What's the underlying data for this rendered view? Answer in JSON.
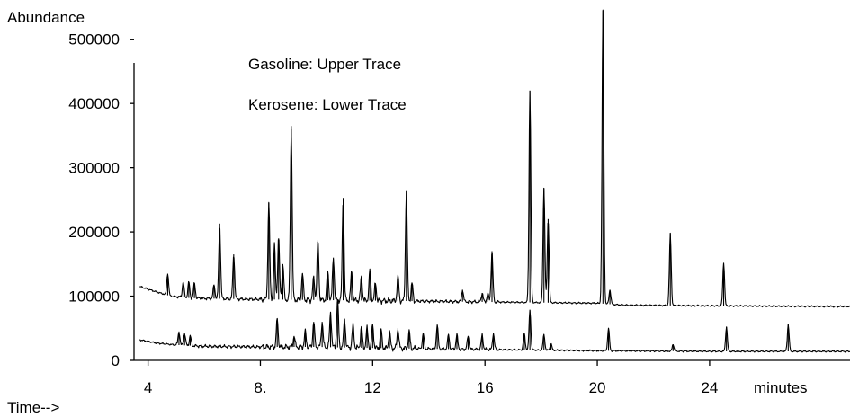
{
  "chart_data": {
    "type": "line",
    "ylabel": "Abundance",
    "xlabel_prefix": "Time-->",
    "x_unit_label": "minutes",
    "annotations": [
      "Gasoline:  Upper Trace",
      "Kerosene:  Lower Trace"
    ],
    "xlim": [
      3.5,
      29.0
    ],
    "ylim": [
      0,
      550000
    ],
    "x_ticks": [
      4,
      8,
      12,
      16,
      20,
      24
    ],
    "x_tick_labels": [
      "4",
      "8.",
      "12",
      "16",
      "20",
      "24"
    ],
    "y_ticks": [
      0,
      100000,
      200000,
      300000,
      400000,
      500000
    ],
    "y_tick_labels": [
      "0",
      "100000",
      "200000",
      "300000",
      "400000",
      "500000"
    ],
    "grid": false,
    "series": [
      {
        "name": "Gasoline",
        "baseline": [
          [
            3.7,
            115000
          ],
          [
            4.2,
            108000
          ],
          [
            4.8,
            100000
          ],
          [
            5.5,
            97000
          ],
          [
            6.5,
            96000
          ],
          [
            8,
            95000
          ],
          [
            10,
            94000
          ],
          [
            12,
            93000
          ],
          [
            16,
            91000
          ],
          [
            20,
            89000
          ],
          [
            20.6,
            87000
          ],
          [
            21,
            86000
          ],
          [
            24,
            85000
          ],
          [
            28,
            84000
          ],
          [
            29.0,
            84000
          ]
        ],
        "peaks": [
          {
            "x": 4.7,
            "y": 135000
          },
          {
            "x": 5.25,
            "y": 122000
          },
          {
            "x": 5.45,
            "y": 122000
          },
          {
            "x": 5.65,
            "y": 120000
          },
          {
            "x": 6.35,
            "y": 118000
          },
          {
            "x": 6.55,
            "y": 213000
          },
          {
            "x": 7.05,
            "y": 165000
          },
          {
            "x": 8.3,
            "y": 245000
          },
          {
            "x": 8.5,
            "y": 180000
          },
          {
            "x": 8.65,
            "y": 190000
          },
          {
            "x": 8.8,
            "y": 150000
          },
          {
            "x": 9.1,
            "y": 365000
          },
          {
            "x": 9.5,
            "y": 135000
          },
          {
            "x": 9.9,
            "y": 130000
          },
          {
            "x": 10.05,
            "y": 187000
          },
          {
            "x": 10.4,
            "y": 140000
          },
          {
            "x": 10.6,
            "y": 160000
          },
          {
            "x": 10.95,
            "y": 253000
          },
          {
            "x": 11.25,
            "y": 138000
          },
          {
            "x": 11.6,
            "y": 130000
          },
          {
            "x": 11.9,
            "y": 140000
          },
          {
            "x": 12.1,
            "y": 120000
          },
          {
            "x": 12.9,
            "y": 130000
          },
          {
            "x": 13.2,
            "y": 265000
          },
          {
            "x": 13.4,
            "y": 120000
          },
          {
            "x": 15.2,
            "y": 110000
          },
          {
            "x": 15.9,
            "y": 105000
          },
          {
            "x": 16.1,
            "y": 104000
          },
          {
            "x": 16.25,
            "y": 170000
          },
          {
            "x": 17.6,
            "y": 420000
          },
          {
            "x": 18.1,
            "y": 268000
          },
          {
            "x": 18.25,
            "y": 220000
          },
          {
            "x": 20.2,
            "y": 545000
          },
          {
            "x": 20.45,
            "y": 110000
          },
          {
            "x": 22.6,
            "y": 198000
          },
          {
            "x": 24.5,
            "y": 152000
          }
        ]
      },
      {
        "name": "Kerosene",
        "baseline": [
          [
            3.7,
            32000
          ],
          [
            4.3,
            27000
          ],
          [
            5.0,
            24000
          ],
          [
            6,
            22000
          ],
          [
            8,
            21000
          ],
          [
            10,
            21000
          ],
          [
            11,
            20000
          ],
          [
            14,
            18000
          ],
          [
            16,
            17000
          ],
          [
            18,
            16000
          ],
          [
            20,
            15000
          ],
          [
            24,
            14000
          ],
          [
            29.0,
            14000
          ]
        ],
        "peaks": [
          {
            "x": 5.1,
            "y": 45000
          },
          {
            "x": 5.3,
            "y": 42000
          },
          {
            "x": 5.5,
            "y": 38000
          },
          {
            "x": 8.6,
            "y": 65000
          },
          {
            "x": 9.2,
            "y": 38000
          },
          {
            "x": 9.6,
            "y": 45000
          },
          {
            "x": 9.9,
            "y": 60000
          },
          {
            "x": 10.2,
            "y": 60000
          },
          {
            "x": 10.5,
            "y": 75000
          },
          {
            "x": 10.75,
            "y": 95000
          },
          {
            "x": 11.0,
            "y": 65000
          },
          {
            "x": 11.3,
            "y": 55000
          },
          {
            "x": 11.6,
            "y": 52000
          },
          {
            "x": 11.8,
            "y": 50000
          },
          {
            "x": 12.0,
            "y": 55000
          },
          {
            "x": 12.3,
            "y": 48000
          },
          {
            "x": 12.6,
            "y": 45000
          },
          {
            "x": 12.9,
            "y": 50000
          },
          {
            "x": 13.3,
            "y": 45000
          },
          {
            "x": 13.8,
            "y": 42000
          },
          {
            "x": 14.3,
            "y": 55000
          },
          {
            "x": 14.7,
            "y": 40000
          },
          {
            "x": 15.0,
            "y": 40000
          },
          {
            "x": 15.4,
            "y": 38000
          },
          {
            "x": 15.9,
            "y": 40000
          },
          {
            "x": 16.3,
            "y": 42000
          },
          {
            "x": 17.4,
            "y": 42000
          },
          {
            "x": 17.6,
            "y": 78000
          },
          {
            "x": 18.1,
            "y": 40000
          },
          {
            "x": 18.35,
            "y": 26000
          },
          {
            "x": 20.4,
            "y": 50000
          },
          {
            "x": 22.7,
            "y": 25000
          },
          {
            "x": 24.6,
            "y": 52000
          },
          {
            "x": 26.8,
            "y": 56000
          }
        ]
      }
    ]
  }
}
